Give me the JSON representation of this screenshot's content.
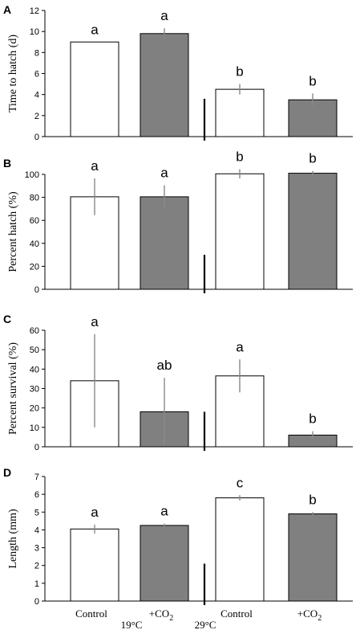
{
  "colors": {
    "control_fill": "#ffffff",
    "co2_fill": "#808080",
    "bar_stroke": "#000000",
    "error_bar": "#888888"
  },
  "x_axis": {
    "category_labels": [
      "Control",
      "+CO",
      "Control",
      "+CO"
    ],
    "category_subscripts": [
      "",
      "2",
      "",
      "2"
    ],
    "group_labels": [
      "19°C",
      "29°C"
    ]
  },
  "chart_data": [
    {
      "panel": "A",
      "type": "bar",
      "ylabel": "Time to hatch (d)",
      "ylim": [
        0,
        12
      ],
      "yticks": [
        0,
        2,
        4,
        6,
        8,
        10,
        12
      ],
      "values": [
        9.0,
        9.8,
        4.5,
        3.5
      ],
      "errors": [
        0.0,
        0.5,
        0.5,
        0.6
      ],
      "significance": [
        "a",
        "a",
        "b",
        "b"
      ]
    },
    {
      "panel": "B",
      "type": "bar",
      "ylabel": "Percent hatch  (%)",
      "ylim": [
        0,
        100
      ],
      "yticks": [
        0,
        20,
        40,
        60,
        80,
        100
      ],
      "values": [
        80.5,
        80.5,
        100.5,
        101.0
      ],
      "errors": [
        16.0,
        10.0,
        4.0,
        2.0
      ],
      "significance": [
        "a",
        "a",
        "b",
        "b"
      ]
    },
    {
      "panel": "C",
      "type": "bar",
      "ylabel": "Percent survival (%)",
      "ylim": [
        0,
        60
      ],
      "yticks": [
        0,
        10,
        20,
        30,
        40,
        50,
        60
      ],
      "values": [
        34.0,
        18.0,
        36.5,
        6.0
      ],
      "errors": [
        24.0,
        17.5,
        8.5,
        2.0
      ],
      "significance": [
        "a",
        "ab",
        "a",
        "b"
      ]
    },
    {
      "panel": "D",
      "type": "bar",
      "ylabel": "Length (mm)",
      "ylim": [
        0,
        7
      ],
      "yticks": [
        0,
        1,
        2,
        3,
        4,
        5,
        6,
        7
      ],
      "values": [
        4.05,
        4.25,
        5.8,
        4.9
      ],
      "errors": [
        0.25,
        0.1,
        0.15,
        0.1
      ],
      "significance": [
        "a",
        "a",
        "c",
        "b"
      ]
    }
  ]
}
